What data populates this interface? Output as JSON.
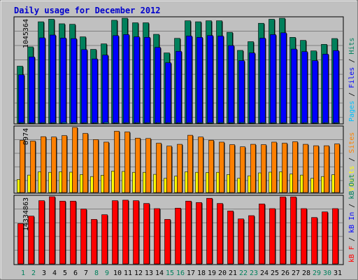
{
  "title": "Daily usage for December 2012",
  "colors": {
    "background": "#c0c0c0",
    "title": "#0000cc",
    "hits": "#00805c",
    "files": "#0000ff",
    "pages": "#00c0ff",
    "visits": "#ffff00",
    "sites": "#ff8000",
    "kbf": "#ff0000",
    "kbin": "#0000ff",
    "kbout": "#00805c",
    "day_weekday": "#000000",
    "day_weekend": "#00805c"
  },
  "chart_data": [
    {
      "type": "bar",
      "panel": "hits-files-pages",
      "max_label": "1045364",
      "ylim": [
        0,
        1045364
      ],
      "categories": [
        "1",
        "2",
        "3",
        "4",
        "5",
        "6",
        "7",
        "8",
        "9",
        "10",
        "11",
        "12",
        "13",
        "14",
        "15",
        "16",
        "17",
        "18",
        "19",
        "20",
        "21",
        "22",
        "23",
        "24",
        "25",
        "26",
        "27",
        "28",
        "29",
        "30",
        "31"
      ],
      "legend": [
        {
          "text": "Pages",
          "color": "#00c0ff"
        },
        {
          "text": " / ",
          "color": "#000000"
        },
        {
          "text": "Files",
          "color": "#0000ff"
        },
        {
          "text": " / ",
          "color": "#000000"
        },
        {
          "text": "Hits",
          "color": "#00805c"
        }
      ],
      "series": [
        {
          "name": "Hits",
          "color": "#00805c",
          "values": [
            568000,
            760000,
            1010000,
            1035000,
            990000,
            985000,
            860000,
            735000,
            790000,
            1025000,
            1045364,
            1000000,
            1000000,
            885000,
            700000,
            845000,
            1020000,
            1010000,
            1020000,
            1020000,
            905000,
            725000,
            812000,
            995000,
            1035000,
            1045364,
            855000,
            825000,
            720000,
            785000,
            843000
          ]
        },
        {
          "name": "Files",
          "color": "#0000ff",
          "values": [
            482000,
            660000,
            850000,
            878000,
            848000,
            842000,
            733000,
            640000,
            678000,
            872000,
            883000,
            860000,
            855000,
            755000,
            602000,
            716000,
            868000,
            855000,
            873000,
            868000,
            773000,
            623000,
            700000,
            847000,
            882000,
            900000,
            738000,
            713000,
            623000,
            688000,
            723000
          ]
        },
        {
          "name": "Pages",
          "color": "#00c0ff",
          "values": [
            7200,
            6900,
            5100,
            3300,
            9200,
            7800,
            6300,
            6600,
            9400,
            5600,
            5400,
            7100,
            5800,
            6100,
            3500,
            5900,
            5700,
            5300,
            7300,
            7100,
            5800,
            7500,
            5600,
            6900,
            4700,
            3900,
            5600,
            7000,
            5200,
            4900,
            6100
          ]
        }
      ]
    },
    {
      "type": "bar",
      "panel": "visits-sites",
      "max_label": "8974",
      "ylim": [
        0,
        8974
      ],
      "categories": [
        "1",
        "2",
        "3",
        "4",
        "5",
        "6",
        "7",
        "8",
        "9",
        "10",
        "11",
        "12",
        "13",
        "14",
        "15",
        "16",
        "17",
        "18",
        "19",
        "20",
        "21",
        "22",
        "23",
        "24",
        "25",
        "26",
        "27",
        "28",
        "29",
        "30",
        "31"
      ],
      "legend": [
        {
          "text": "Visits",
          "color": "#ffff00"
        },
        {
          "text": " / ",
          "color": "#000000"
        },
        {
          "text": "Sites",
          "color": "#ff8000"
        }
      ],
      "series": [
        {
          "name": "Sites",
          "color": "#ff8000",
          "values": [
            7200,
            7100,
            7700,
            7650,
            7850,
            8974,
            8150,
            7300,
            6950,
            8450,
            8350,
            7500,
            7450,
            6800,
            6400,
            6650,
            7900,
            7650,
            7200,
            6950,
            6600,
            6300,
            6650,
            6600,
            6950,
            6800,
            7000,
            6650,
            6450,
            6450,
            6700
          ]
        },
        {
          "name": "Visits",
          "color": "#ffff00",
          "values": [
            1800,
            2400,
            2850,
            2780,
            2850,
            2800,
            2480,
            2200,
            2380,
            2950,
            2900,
            2780,
            2780,
            2500,
            1950,
            2250,
            2850,
            2780,
            2750,
            2780,
            2480,
            1950,
            2300,
            2700,
            2800,
            2850,
            2550,
            2400,
            1950,
            2200,
            2450
          ]
        }
      ]
    },
    {
      "type": "bar",
      "panel": "kbf-kbin-kbout",
      "max_label": "14334863",
      "ylim": [
        0,
        14334863
      ],
      "categories": [
        "1",
        "2",
        "3",
        "4",
        "5",
        "6",
        "7",
        "8",
        "9",
        "10",
        "11",
        "12",
        "13",
        "14",
        "15",
        "16",
        "17",
        "18",
        "19",
        "20",
        "21",
        "22",
        "23",
        "24",
        "25",
        "26",
        "27",
        "28",
        "29",
        "30",
        "31"
      ],
      "legend": [
        {
          "text": "kB F",
          "color": "#ff0000"
        },
        {
          "text": " / ",
          "color": "#000000"
        },
        {
          "text": "kB In",
          "color": "#0000ff"
        },
        {
          "text": " / ",
          "color": "#000000"
        },
        {
          "text": "kB Out",
          "color": "#00805c"
        }
      ],
      "series": [
        {
          "name": "kB F",
          "color": "#ff0000",
          "values": [
            8600000,
            10200000,
            13500000,
            14334863,
            13400000,
            13400000,
            11700000,
            9500000,
            10500000,
            13500000,
            13600000,
            13500000,
            12900000,
            11800000,
            9500000,
            11900000,
            13400000,
            13100000,
            14000000,
            12900000,
            11300000,
            9600000,
            10300000,
            12800000,
            11800000,
            14300000,
            14300000,
            11800000,
            9900000,
            11100000,
            11800000
          ]
        }
      ]
    }
  ],
  "day_labels": [
    {
      "text": "1",
      "weekend": true
    },
    {
      "text": "2",
      "weekend": true
    },
    {
      "text": "3",
      "weekend": false
    },
    {
      "text": "4",
      "weekend": false
    },
    {
      "text": "5",
      "weekend": false
    },
    {
      "text": "6",
      "weekend": false
    },
    {
      "text": "7",
      "weekend": false
    },
    {
      "text": "8",
      "weekend": true
    },
    {
      "text": "9",
      "weekend": true
    },
    {
      "text": "10",
      "weekend": false
    },
    {
      "text": "11",
      "weekend": false
    },
    {
      "text": "12",
      "weekend": false
    },
    {
      "text": "13",
      "weekend": false
    },
    {
      "text": "14",
      "weekend": false
    },
    {
      "text": "15",
      "weekend": true
    },
    {
      "text": "16",
      "weekend": true
    },
    {
      "text": "17",
      "weekend": false
    },
    {
      "text": "18",
      "weekend": false
    },
    {
      "text": "19",
      "weekend": false
    },
    {
      "text": "20",
      "weekend": false
    },
    {
      "text": "21",
      "weekend": false
    },
    {
      "text": "22",
      "weekend": true
    },
    {
      "text": "23",
      "weekend": true
    },
    {
      "text": "24",
      "weekend": false
    },
    {
      "text": "25",
      "weekend": false
    },
    {
      "text": "26",
      "weekend": false
    },
    {
      "text": "27",
      "weekend": false
    },
    {
      "text": "28",
      "weekend": false
    },
    {
      "text": "29",
      "weekend": true
    },
    {
      "text": "30",
      "weekend": true
    },
    {
      "text": "31",
      "weekend": false
    }
  ]
}
